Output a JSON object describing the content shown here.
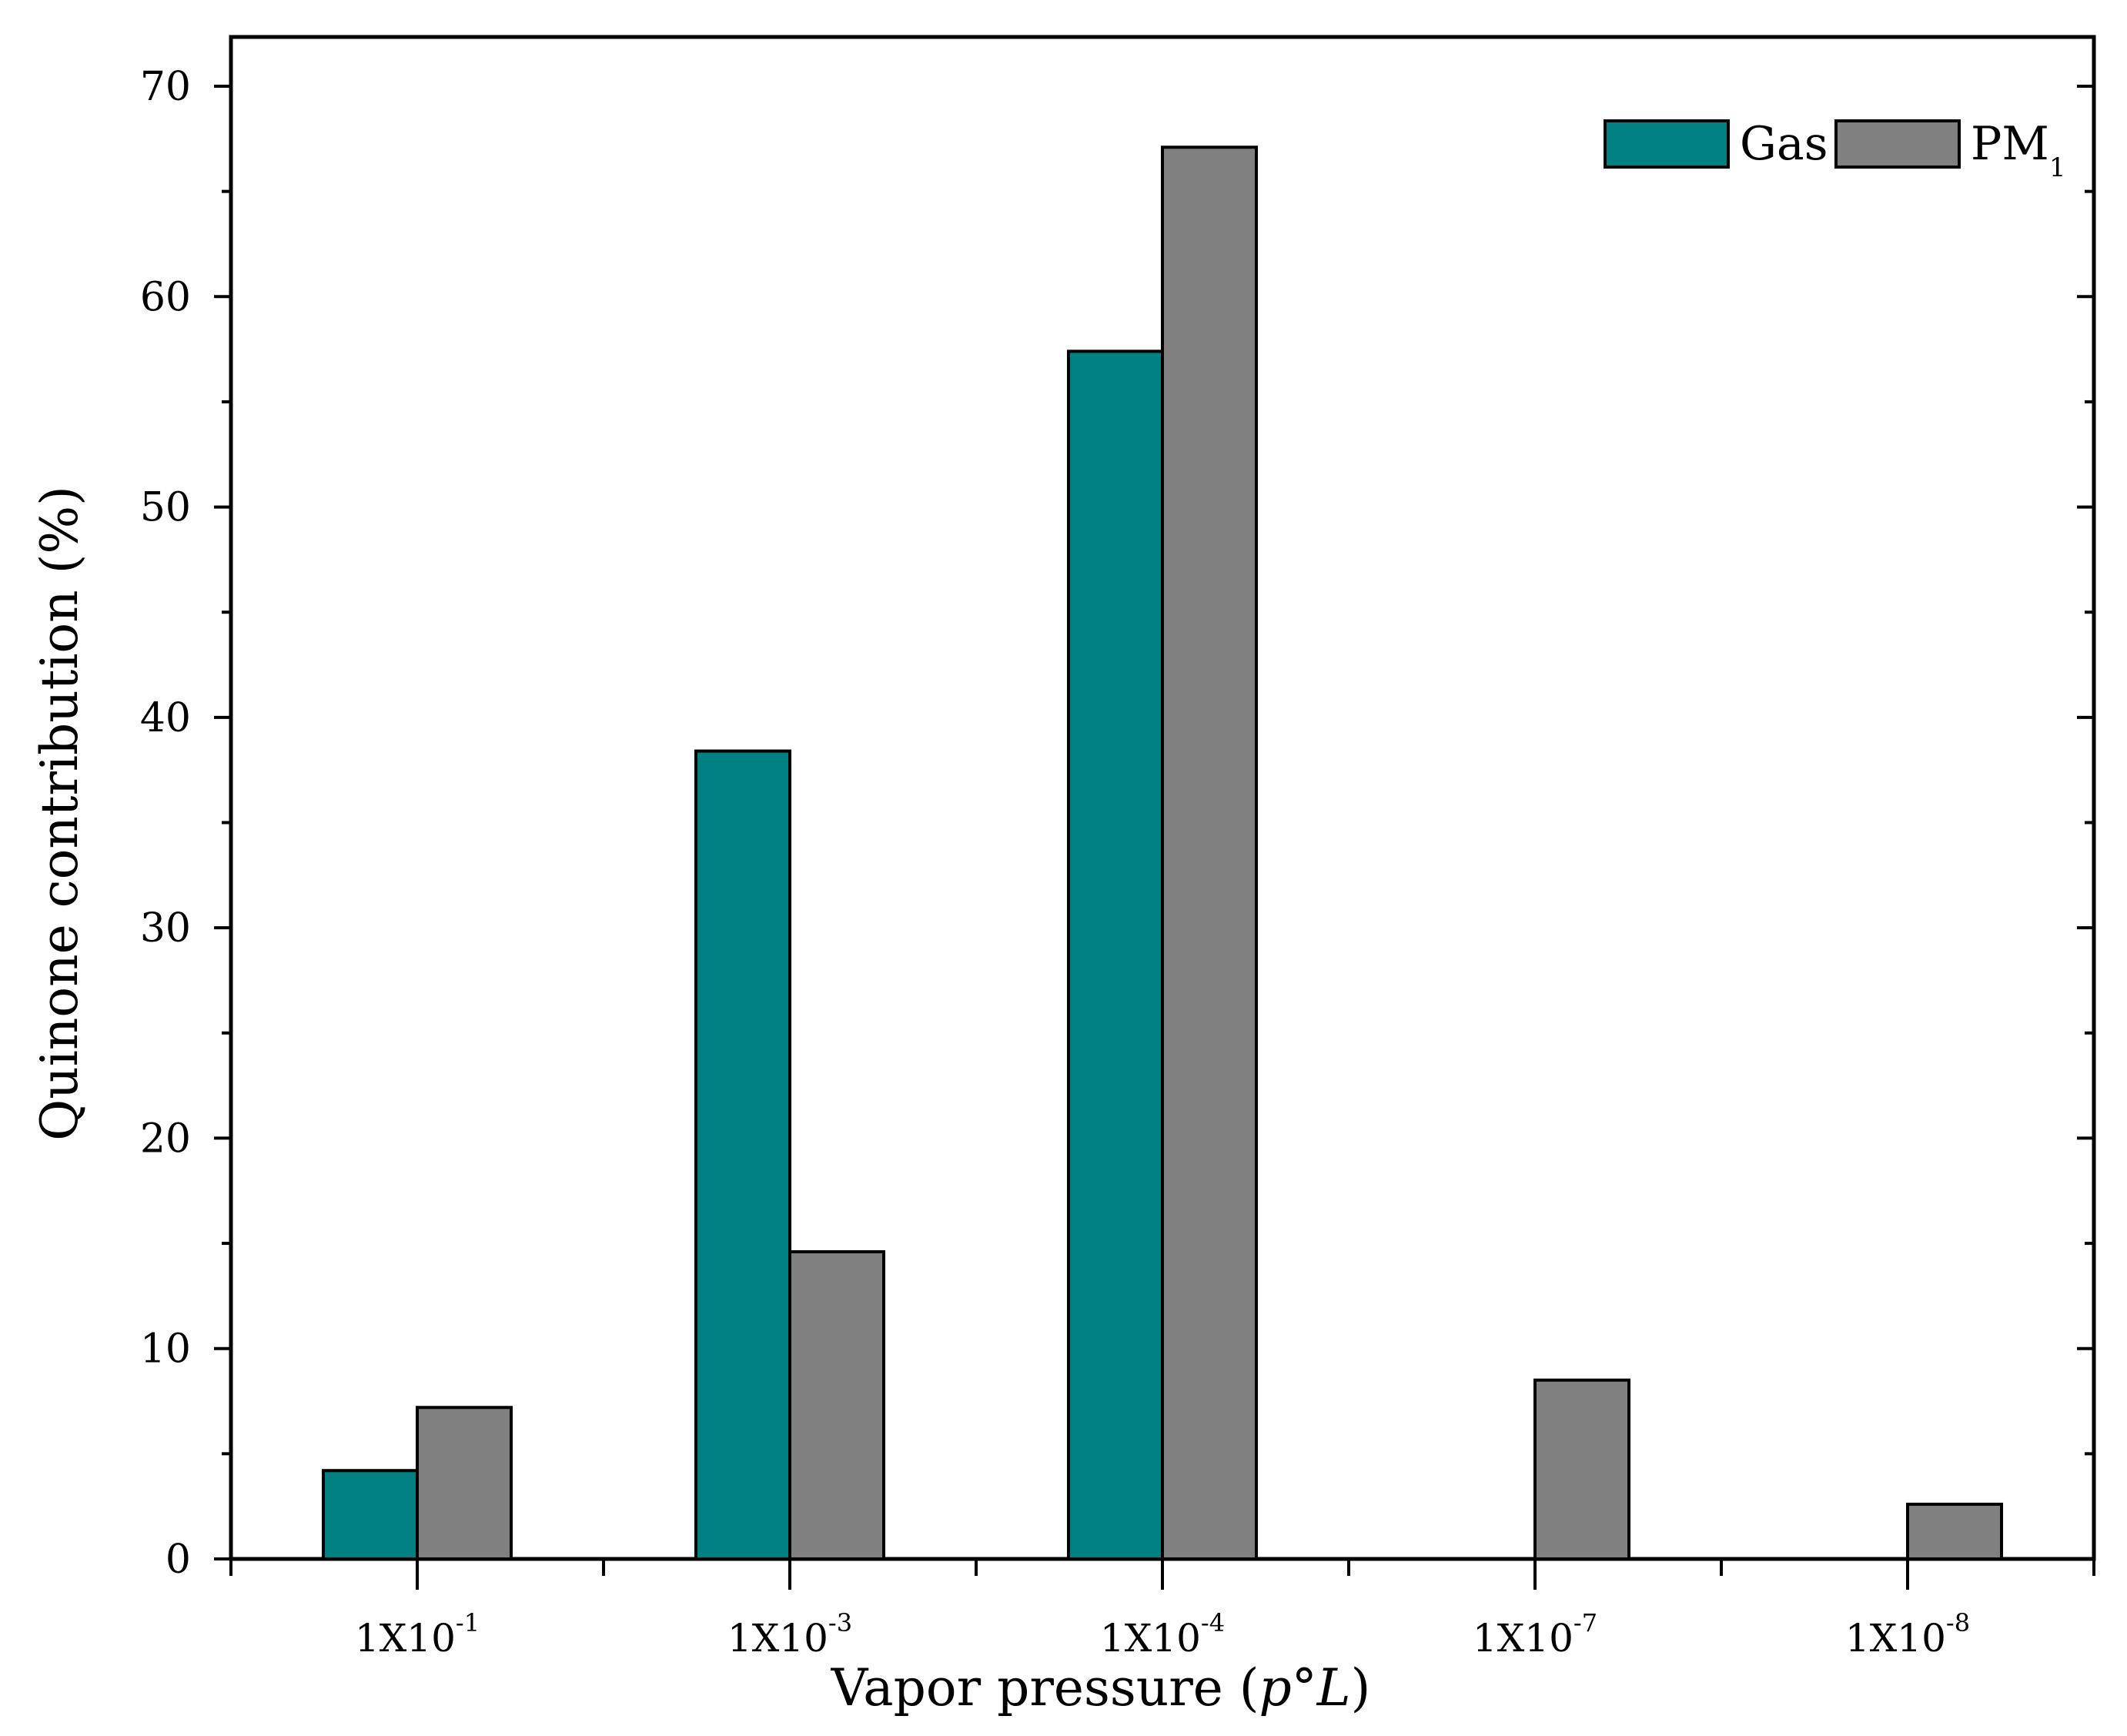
{
  "chart_data": {
    "type": "bar",
    "title": "",
    "xlabel": {
      "prefix": "Vapor pressure (",
      "italic": "p",
      "middle": "°",
      "italic2": "L",
      "suffix": ")"
    },
    "ylabel": "Quinone contribution (%)",
    "ylim": [
      0,
      70
    ],
    "yticks": [
      0,
      10,
      20,
      30,
      40,
      50,
      60,
      70
    ],
    "categories": [
      {
        "base": "1X10",
        "exp": "-1"
      },
      {
        "base": "1X10",
        "exp": "-3"
      },
      {
        "base": "1X10",
        "exp": "-4"
      },
      {
        "base": "1X10",
        "exp": "-7"
      },
      {
        "base": "1X10",
        "exp": "-8"
      }
    ],
    "series": [
      {
        "name": "Gas",
        "subscript": "",
        "color": "#008080",
        "values": [
          4.2,
          38.4,
          57.4,
          0,
          0
        ]
      },
      {
        "name": "PM",
        "subscript": "1",
        "color": "#808080",
        "values": [
          7.2,
          14.6,
          67.1,
          8.5,
          2.6
        ]
      }
    ],
    "legend_position": "top-right",
    "grid": false
  }
}
